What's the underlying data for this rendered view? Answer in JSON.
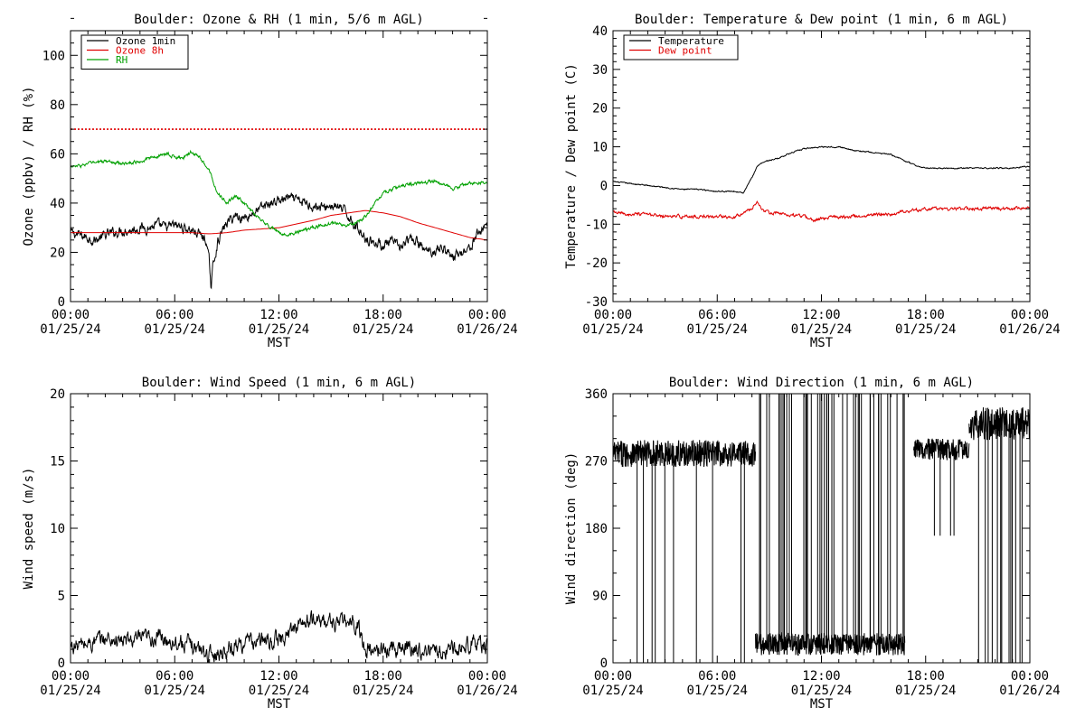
{
  "chart_data": [
    {
      "type": "line",
      "title": "Boulder: Ozone & RH (1 min, 5/6 m AGL)",
      "ylabel": "Ozone (ppbv) / RH (%)",
      "xlabel": "MST",
      "xlim": [
        0,
        24
      ],
      "ylim": [
        0,
        110
      ],
      "yticks": [
        0,
        20,
        40,
        60,
        80,
        100
      ],
      "xtick_labels": [
        {
          "x": 0,
          "time": "00:00",
          "date": "01/25/24"
        },
        {
          "x": 6,
          "time": "06:00",
          "date": "01/25/24"
        },
        {
          "x": 12,
          "time": "12:00",
          "date": "01/25/24"
        },
        {
          "x": 18,
          "time": "18:00",
          "date": "01/25/24"
        },
        {
          "x": 24,
          "time": "00:00",
          "date": "01/26/24"
        }
      ],
      "reference_lines": [
        {
          "y": 70,
          "color": "#e00000",
          "style": "dotted"
        }
      ],
      "legend": "top-left",
      "series": [
        {
          "name": "Ozone 1min",
          "color": "#000000",
          "noise": 2.0,
          "x": [
            0,
            0.5,
            1,
            1.5,
            2,
            2.5,
            3,
            3.5,
            4,
            4.5,
            5,
            5.5,
            6,
            6.5,
            7,
            7.5,
            7.8,
            8,
            8.1,
            8.2,
            8.5,
            9,
            9.5,
            10,
            10.5,
            11,
            11.5,
            12,
            12.5,
            13,
            13.5,
            14,
            14.5,
            15,
            15.5,
            16,
            16.5,
            17,
            17.5,
            18,
            18.5,
            19,
            19.5,
            20,
            20.5,
            21,
            21.5,
            22,
            22.5,
            23,
            23.5,
            24
          ],
          "y": [
            28,
            27,
            26,
            25,
            27,
            28,
            29,
            29,
            30,
            30,
            31,
            30,
            31,
            30,
            29,
            27,
            25,
            15,
            5,
            15,
            25,
            32,
            35,
            34,
            36,
            38,
            40,
            41,
            42,
            41,
            40,
            39,
            38,
            39,
            38,
            35,
            30,
            26,
            24,
            23,
            24,
            22,
            25,
            24,
            20,
            21,
            22,
            18,
            20,
            22,
            28,
            32
          ]
        },
        {
          "name": "Ozone 8h",
          "color": "#e00000",
          "x": [
            0,
            2,
            4,
            6,
            7,
            8,
            9,
            10,
            11,
            12,
            13,
            14,
            15,
            16,
            17,
            18,
            19,
            20,
            21,
            22,
            23,
            24
          ],
          "y": [
            28,
            28,
            28,
            28,
            28,
            27.5,
            28,
            29,
            29.5,
            30,
            31.5,
            33,
            35,
            36,
            37,
            36,
            34.5,
            32,
            30,
            28,
            26,
            25
          ]
        },
        {
          "name": "RH",
          "color": "#00a000",
          "noise": 0.7,
          "x": [
            0,
            0.5,
            1,
            2,
            3,
            4,
            4.5,
            5,
            5.5,
            6,
            6.5,
            7,
            7.5,
            8,
            8.5,
            9,
            9.5,
            10,
            10.5,
            11,
            11.5,
            12,
            12.5,
            13,
            14,
            15,
            16,
            16.5,
            17,
            17.5,
            18,
            19,
            20,
            21,
            22,
            22.5,
            23,
            24
          ],
          "y": [
            55,
            55,
            56,
            57,
            56,
            57,
            58,
            59,
            60,
            59,
            58,
            61,
            58,
            53,
            44,
            40,
            43,
            40,
            36,
            33,
            30,
            28,
            27,
            28,
            30,
            32,
            31,
            32,
            35,
            40,
            44,
            47,
            48,
            49,
            46,
            47,
            48,
            48
          ]
        }
      ]
    },
    {
      "type": "line",
      "title": "Boulder: Temperature & Dew point (1 min, 6 m AGL)",
      "ylabel": "Temperature / Dew point (C)",
      "xlabel": "MST",
      "xlim": [
        0,
        24
      ],
      "ylim": [
        -30,
        40
      ],
      "yticks": [
        -30,
        -20,
        -10,
        0,
        10,
        20,
        30,
        40
      ],
      "xtick_labels": [
        {
          "x": 0,
          "time": "00:00",
          "date": "01/25/24"
        },
        {
          "x": 6,
          "time": "06:00",
          "date": "01/25/24"
        },
        {
          "x": 12,
          "time": "12:00",
          "date": "01/25/24"
        },
        {
          "x": 18,
          "time": "18:00",
          "date": "01/25/24"
        },
        {
          "x": 24,
          "time": "00:00",
          "date": "01/26/24"
        }
      ],
      "legend": "top-left",
      "series": [
        {
          "name": "Temperature",
          "color": "#000000",
          "noise": 0.15,
          "x": [
            0,
            1,
            2,
            3,
            4,
            5,
            6,
            7,
            7.5,
            8,
            8.3,
            8.6,
            9,
            9.5,
            10,
            11,
            12,
            13,
            14,
            15,
            16,
            17,
            17.5,
            18,
            19,
            20,
            21,
            22,
            23,
            24
          ],
          "y": [
            1,
            0.5,
            0,
            -0.5,
            -1,
            -1,
            -1.5,
            -1.5,
            -2,
            2,
            5,
            6,
            6.5,
            7,
            8,
            9.5,
            10,
            10,
            9,
            8.5,
            8,
            6,
            5,
            4.5,
            4.5,
            4.5,
            4.5,
            4.5,
            4.5,
            5
          ]
        },
        {
          "name": "Dew point",
          "color": "#e00000",
          "noise": 0.4,
          "x": [
            0,
            1,
            2,
            3,
            4,
            5,
            6,
            7,
            7.5,
            8,
            8.3,
            8.6,
            9,
            10,
            11,
            11.5,
            12,
            13,
            14,
            15,
            16,
            17,
            18,
            19,
            20,
            21,
            22,
            23,
            24
          ],
          "y": [
            -7,
            -7.5,
            -7.5,
            -8,
            -8,
            -8,
            -8,
            -8,
            -7,
            -6,
            -4,
            -6.5,
            -7,
            -7.5,
            -8,
            -9,
            -8.5,
            -8,
            -8,
            -7.5,
            -7.5,
            -6.5,
            -6,
            -6,
            -6,
            -6,
            -6,
            -6,
            -5.5
          ]
        }
      ]
    },
    {
      "type": "line",
      "title": "Boulder: Wind Speed (1 min, 6 m AGL)",
      "ylabel": "Wind speed (m/s)",
      "xlabel": "MST",
      "xlim": [
        0,
        24
      ],
      "ylim": [
        0,
        20
      ],
      "yticks": [
        0,
        5,
        10,
        15,
        20
      ],
      "xtick_labels": [
        {
          "x": 0,
          "time": "00:00",
          "date": "01/25/24"
        },
        {
          "x": 6,
          "time": "06:00",
          "date": "01/25/24"
        },
        {
          "x": 12,
          "time": "12:00",
          "date": "01/25/24"
        },
        {
          "x": 18,
          "time": "18:00",
          "date": "01/25/24"
        },
        {
          "x": 24,
          "time": "00:00",
          "date": "01/26/24"
        }
      ],
      "series": [
        {
          "name": "",
          "color": "#000000",
          "noise": 0.6,
          "x": [
            0,
            1,
            2,
            3,
            4,
            5,
            6,
            7,
            7.5,
            8,
            8.5,
            9,
            10,
            11,
            12,
            12.5,
            13,
            13.5,
            14,
            15,
            16,
            16.5,
            17,
            17.5,
            18,
            19,
            20,
            21,
            22,
            23,
            24
          ],
          "y": [
            1.2,
            1.4,
            1.8,
            1.6,
            1.7,
            1.9,
            1.6,
            1.3,
            1,
            0.6,
            0.7,
            1,
            1.5,
            1.6,
            1.7,
            2,
            2.8,
            3,
            3.2,
            3,
            3,
            2.8,
            1,
            0.9,
            1,
            1.2,
            1,
            0.8,
            1,
            1.5,
            1.2
          ]
        }
      ]
    },
    {
      "type": "line",
      "title": "Boulder: Wind Direction (1 min, 6 m AGL)",
      "ylabel": "Wind direction (deg)",
      "xlabel": "MST",
      "xlim": [
        0,
        24
      ],
      "ylim": [
        0,
        360
      ],
      "yticks": [
        0,
        90,
        180,
        270,
        360
      ],
      "xtick_labels": [
        {
          "x": 0,
          "time": "00:00",
          "date": "01/25/24"
        },
        {
          "x": 6,
          "time": "06:00",
          "date": "01/25/24"
        },
        {
          "x": 12,
          "time": "12:00",
          "date": "01/25/24"
        },
        {
          "x": 18,
          "time": "18:00",
          "date": "01/25/24"
        },
        {
          "x": 24,
          "time": "00:00",
          "date": "01/26/24"
        }
      ],
      "series": [
        {
          "name": "",
          "color": "#000000",
          "segments": [
            {
              "x0": 0,
              "x1": 8.2,
              "level": 280,
              "noise": 18,
              "spike_to": 0,
              "spike_count": 10,
              "spike_seed": 3
            },
            {
              "x0": 8.2,
              "x1": 16.8,
              "level": 25,
              "noise": 15,
              "spike_to": 360,
              "spike_count": 45,
              "spike_seed": 7
            },
            {
              "x0": 17.3,
              "x1": 20.5,
              "level": 285,
              "noise": 15,
              "spike_to": 170,
              "spike_count": 4,
              "spike_seed": 11
            },
            {
              "x0": 20.5,
              "x1": 24,
              "level": 320,
              "noise": 22,
              "spike_to": 0,
              "spike_count": 14,
              "spike_seed": 19
            }
          ]
        }
      ]
    }
  ]
}
